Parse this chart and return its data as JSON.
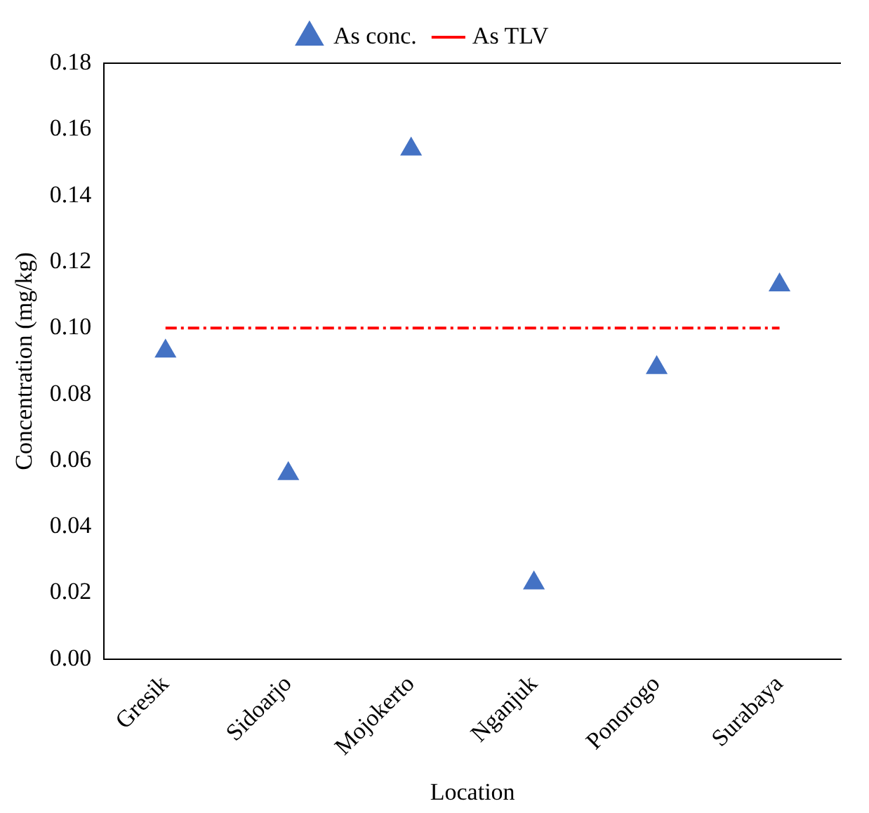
{
  "chart_data": {
    "type": "scatter",
    "xlabel": "Location",
    "ylabel": "Concentration (mg/kg)",
    "categories": [
      "Gresik",
      "Sidoarjo",
      "Mojokerto",
      "Nganjuk",
      "Ponorogo",
      "Surabaya"
    ],
    "series": [
      {
        "name": "As conc.",
        "color": "#4472c4",
        "marker": "triangle",
        "values": [
          0.093,
          0.056,
          0.154,
          0.023,
          0.088,
          0.113
        ]
      },
      {
        "name": "As TLV",
        "type": "line",
        "color": "#ff0000",
        "marker": "none",
        "line_style": "dashed",
        "values": [
          0.1,
          0.1,
          0.1,
          0.1,
          0.1,
          0.1
        ]
      }
    ],
    "ylim": [
      0,
      0.18
    ],
    "yticks": [
      {
        "value": 0,
        "label": "0.00"
      },
      {
        "value": 0.02,
        "label": "0.02"
      },
      {
        "value": 0.04,
        "label": "0.04"
      },
      {
        "value": 0.06,
        "label": "0.06"
      },
      {
        "value": 0.08,
        "label": "0.08"
      },
      {
        "value": 0.1,
        "label": "0.10"
      },
      {
        "value": 0.12,
        "label": "0.12"
      },
      {
        "value": 0.14,
        "label": "0.14"
      },
      {
        "value": 0.16,
        "label": "0.16"
      },
      {
        "value": 0.18,
        "label": "0.18"
      }
    ],
    "grid": false,
    "legend": "top"
  }
}
